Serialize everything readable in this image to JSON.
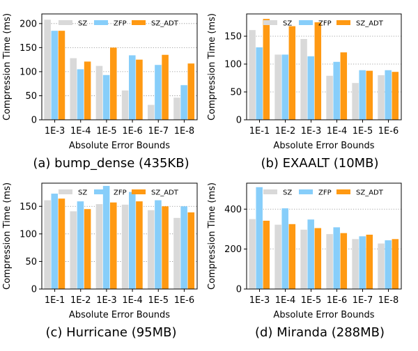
{
  "colors": {
    "SZ": "#d9d9d9",
    "ZFP": "#87cefa",
    "SZ_ADT": "#ff9912"
  },
  "chart_data": [
    {
      "type": "bar",
      "title": "(a) bump_dense (435KB)",
      "xlabel": "Absolute Error Bounds",
      "ylabel": "Compression Time (ms)",
      "categories": [
        "1E-3",
        "1E-4",
        "1E-5",
        "1E-6",
        "1E-7",
        "1E-8"
      ],
      "ylim": [
        0,
        220
      ],
      "yticks": [
        0,
        50,
        100,
        150,
        200
      ],
      "grid": "y-dotted",
      "legend": "top",
      "series": [
        {
          "name": "SZ",
          "values": [
            208,
            128,
            112,
            61,
            31,
            46
          ]
        },
        {
          "name": "ZFP",
          "values": [
            185,
            105,
            93,
            134,
            114,
            72
          ]
        },
        {
          "name": "SZ_ADT",
          "values": [
            185,
            121,
            150,
            125,
            135,
            117
          ]
        }
      ]
    },
    {
      "type": "bar",
      "title": "(b) EXAALT (10MB)",
      "xlabel": "Absolute Error Bounds",
      "ylabel": "Compression Time (ms)",
      "categories": [
        "1E-1",
        "1E-2",
        "1E-3",
        "1E-4",
        "1E-5",
        "1E-6"
      ],
      "ylim": [
        0,
        190
      ],
      "yticks": [
        0,
        50,
        100,
        150
      ],
      "grid": "y-dotted",
      "legend": "top",
      "series": [
        {
          "name": "SZ",
          "values": [
            161,
            117,
            145,
            79,
            66,
            80
          ]
        },
        {
          "name": "ZFP",
          "values": [
            130,
            117,
            114,
            104,
            89,
            89
          ]
        },
        {
          "name": "SZ_ADT",
          "values": [
            181,
            168,
            175,
            121,
            88,
            86
          ]
        }
      ]
    },
    {
      "type": "bar",
      "title": "(c) Hurricane (95MB)",
      "xlabel": "Absolute Error Bounds",
      "ylabel": "Compression Time (ms)",
      "categories": [
        "1E-1",
        "1E-2",
        "1E-3",
        "1E-4",
        "1E-5",
        "1E-6"
      ],
      "ylim": [
        0,
        192
      ],
      "yticks": [
        0,
        50,
        100,
        150
      ],
      "grid": "y-dotted",
      "legend": "top",
      "series": [
        {
          "name": "SZ",
          "values": [
            161,
            141,
            154,
            153,
            143,
            129
          ]
        },
        {
          "name": "ZFP",
          "values": [
            173,
            159,
            187,
            176,
            161,
            150
          ]
        },
        {
          "name": "SZ_ADT",
          "values": [
            164,
            145,
            157,
            159,
            150,
            139
          ]
        }
      ]
    },
    {
      "type": "bar",
      "title": "(d) Miranda (288MB)",
      "xlabel": "Absolute Error Bounds",
      "ylabel": "Compression Time (ms)",
      "categories": [
        "1E-3",
        "1E-4",
        "1E-5",
        "1E-6",
        "1E-7",
        "1E-8"
      ],
      "ylim": [
        0,
        530
      ],
      "yticks": [
        0,
        200,
        400
      ],
      "grid": "y-dotted",
      "legend": "top",
      "series": [
        {
          "name": "SZ",
          "values": [
            350,
            322,
            297,
            275,
            250,
            228
          ]
        },
        {
          "name": "ZFP",
          "values": [
            510,
            404,
            348,
            309,
            264,
            244
          ]
        },
        {
          "name": "SZ_ADT",
          "values": [
            342,
            325,
            305,
            280,
            272,
            250
          ]
        }
      ]
    }
  ]
}
